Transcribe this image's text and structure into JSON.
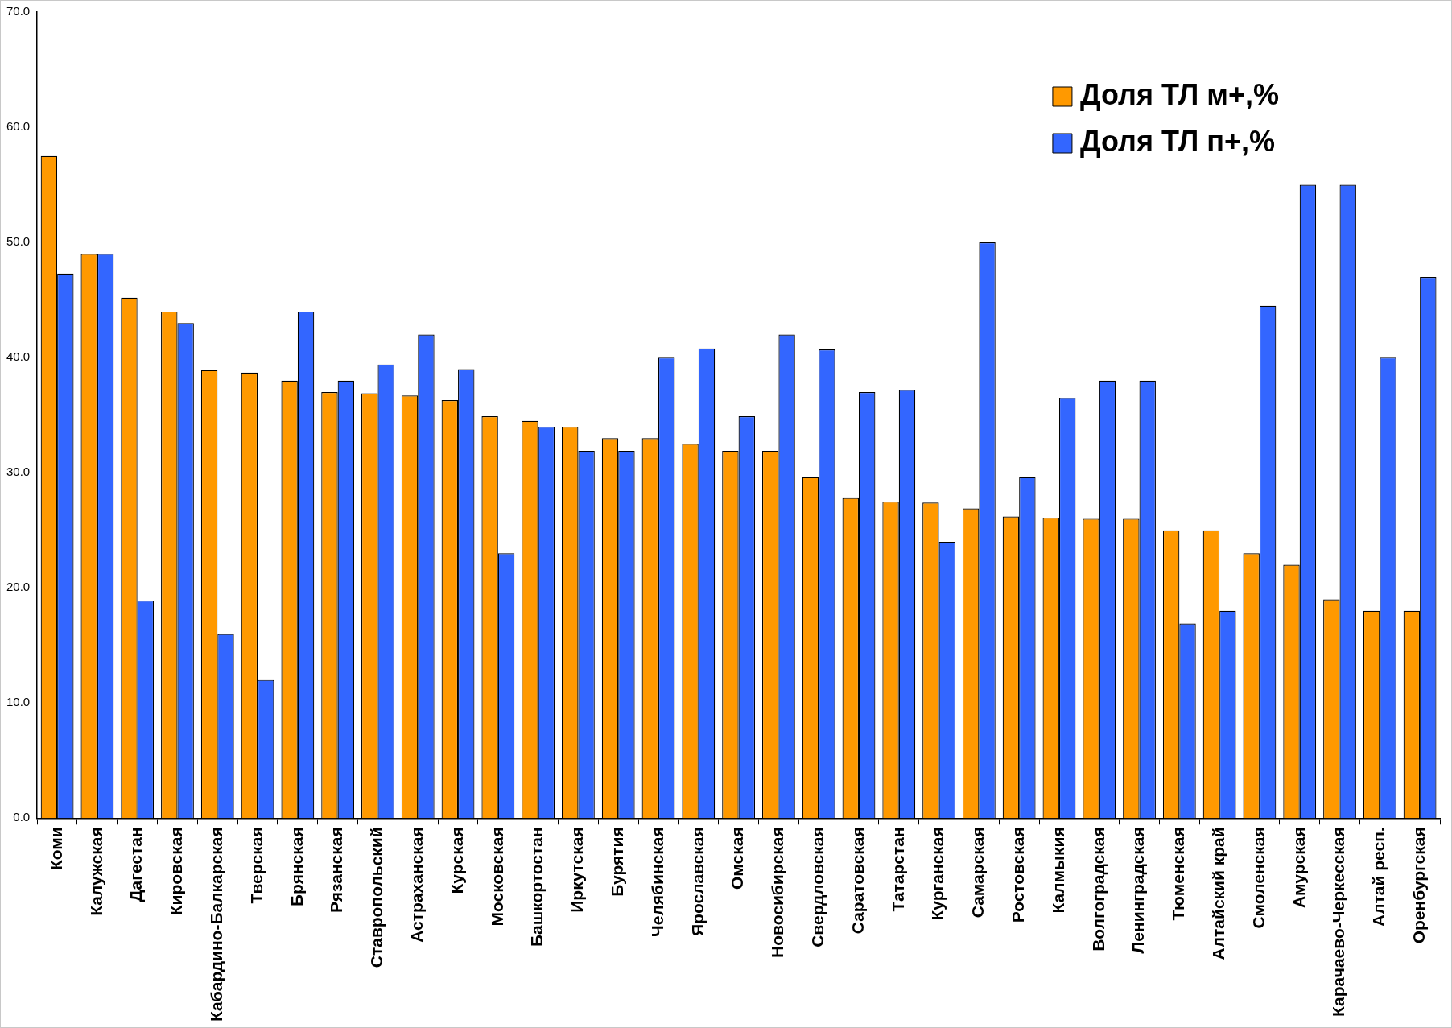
{
  "chart_data": {
    "type": "bar",
    "categories": [
      "Коми",
      "Калужская",
      "Дагестан",
      "Кировская",
      "Кабардино-Балкарская",
      "Тверская",
      "Брянская",
      "Рязанская",
      "Ставропольский",
      "Астраханская",
      "Курская",
      "Московская",
      "Башкортостан",
      "Иркутская",
      "Бурятия",
      "Челябинская",
      "Ярославская",
      "Омская",
      "Новосибирская",
      "Свердловская",
      "Саратовская",
      "Татарстан",
      "Курганская",
      "Самарская",
      "Ростовская",
      "Калмыкия",
      "Волгоградская",
      "Ленинградская",
      "Тюменская",
      "Алтайский край",
      "Смоленская",
      "Амурская",
      "Карачаево-Черкесская",
      "Алтай респ.",
      "Оренбургская"
    ],
    "series": [
      {
        "name": "Доля ТЛ м+,%",
        "color": "#ff9900",
        "values": [
          57.5,
          49,
          45.2,
          44,
          38.9,
          38.7,
          38,
          37,
          36.9,
          36.7,
          36.3,
          34.9,
          34.5,
          34,
          33,
          33,
          32.5,
          31.9,
          31.9,
          29.6,
          27.8,
          27.5,
          27.4,
          26.9,
          26.2,
          26.1,
          26,
          26,
          25,
          25,
          23,
          22,
          19,
          18,
          18
        ]
      },
      {
        "name": "Доля ТЛ п+,%",
        "color": "#3366ff",
        "values": [
          47.3,
          49,
          18.9,
          43,
          16,
          12,
          44,
          38,
          39.4,
          42,
          39,
          23,
          34,
          31.9,
          31.9,
          40,
          40.8,
          34.9,
          42,
          40.7,
          37,
          37.2,
          24,
          50,
          29.6,
          36.5,
          38,
          38,
          16.9,
          18,
          44.5,
          55,
          55,
          40,
          47
        ]
      }
    ],
    "ylim": [
      0,
      70
    ],
    "yticks": [
      {
        "value": 0,
        "label": "0.0"
      },
      {
        "value": 10,
        "label": "10.0"
      },
      {
        "value": 20,
        "label": "20.0"
      },
      {
        "value": 30,
        "label": "30.0"
      },
      {
        "value": 40,
        "label": "40.0"
      },
      {
        "value": 50,
        "label": "50.0"
      },
      {
        "value": 60,
        "label": "60.0"
      },
      {
        "value": 70,
        "label": "70.0"
      }
    ],
    "grid": false,
    "legend": "top right"
  }
}
